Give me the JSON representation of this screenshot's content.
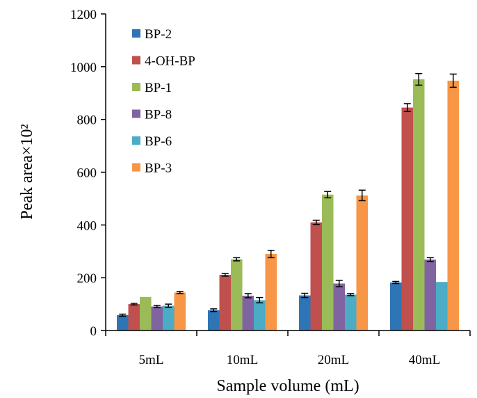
{
  "chart_data": {
    "type": "bar",
    "xlabel": "Sample volume (mL)",
    "ylabel": "Peak area×10²",
    "ylim": [
      0,
      1200
    ],
    "yticks": [
      0,
      200,
      400,
      600,
      800,
      1000,
      1200
    ],
    "categories": [
      "5mL",
      "10mL",
      "20mL",
      "40mL"
    ],
    "legend_position": "top-left",
    "grid": false,
    "series": [
      {
        "name": "BP-2",
        "color": "#2e75b6",
        "values": [
          58,
          77,
          133,
          182
        ],
        "errors": [
          4,
          5,
          8,
          4
        ]
      },
      {
        "name": "4-OH-BP",
        "color": "#c0504d",
        "values": [
          100,
          211,
          410,
          845
        ],
        "errors": [
          3,
          5,
          8,
          15
        ]
      },
      {
        "name": "BP-1",
        "color": "#9bbb59",
        "values": [
          127,
          270,
          515,
          952
        ],
        "errors": [
          0,
          6,
          12,
          22
        ]
      },
      {
        "name": "BP-8",
        "color": "#8064a2",
        "values": [
          91,
          132,
          178,
          269
        ],
        "errors": [
          4,
          8,
          12,
          7
        ]
      },
      {
        "name": "BP-6",
        "color": "#4bacc6",
        "values": [
          94,
          115,
          136,
          184
        ],
        "errors": [
          6,
          10,
          4,
          0
        ]
      },
      {
        "name": "BP-3",
        "color": "#f79646",
        "values": [
          144,
          290,
          512,
          947
        ],
        "errors": [
          4,
          14,
          20,
          25
        ]
      }
    ]
  }
}
